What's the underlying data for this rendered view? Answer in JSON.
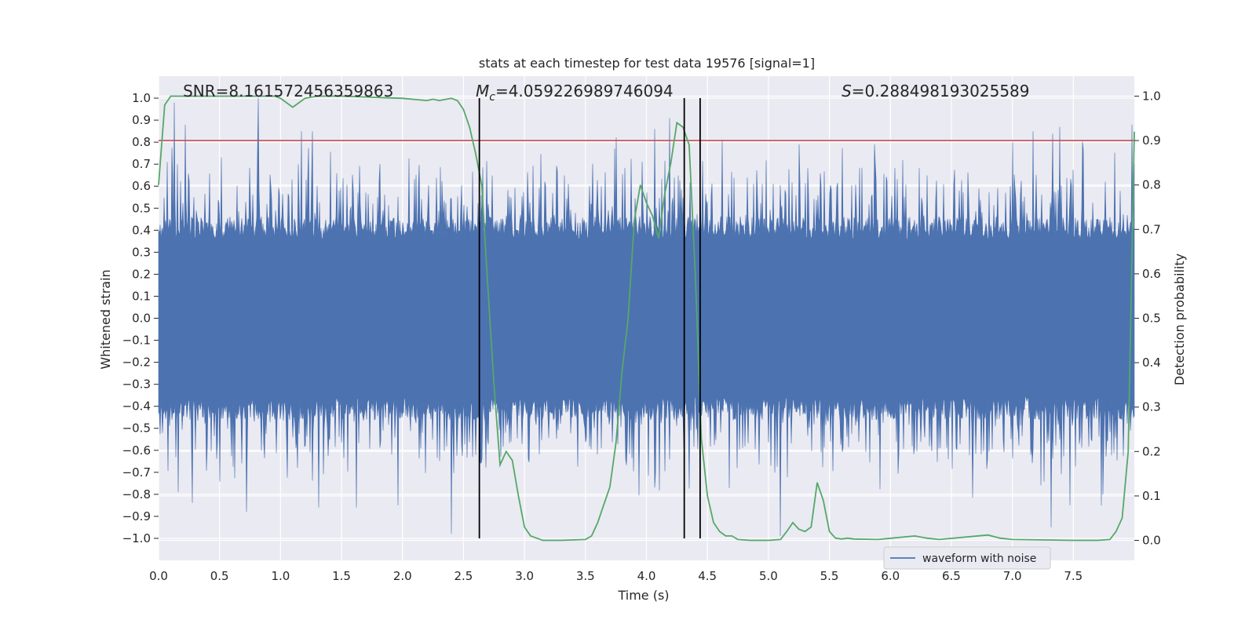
{
  "chart_data": {
    "type": "line",
    "title": "stats at each timestep for test data 19576 [signal=1]",
    "xlabel": "Time (s)",
    "ylabel": "Whitened strain",
    "y2label": "Detection probability",
    "xlim": [
      0.0,
      8.0
    ],
    "ylim": [
      -1.1,
      1.1
    ],
    "y2lim": [
      -0.045,
      1.045
    ],
    "xticks": [
      0.0,
      0.5,
      1.0,
      1.5,
      2.0,
      2.5,
      3.0,
      3.5,
      4.0,
      4.5,
      5.0,
      5.5,
      6.0,
      6.5,
      7.0,
      7.5
    ],
    "xtick_labels": [
      "0.0",
      "0.5",
      "1.0",
      "1.5",
      "2.0",
      "2.5",
      "3.0",
      "3.5",
      "4.0",
      "4.5",
      "5.0",
      "5.5",
      "6.0",
      "6.5",
      "7.0",
      "7.5"
    ],
    "yticks": [
      -1.0,
      -0.9,
      -0.8,
      -0.7,
      -0.6,
      -0.5,
      -0.4,
      -0.3,
      -0.2,
      -0.1,
      0.0,
      0.1,
      0.2,
      0.3,
      0.4,
      0.5,
      0.6,
      0.7,
      0.8,
      0.9,
      1.0
    ],
    "ytick_labels": [
      "−1.0",
      "−0.9",
      "−0.8",
      "−0.7",
      "−0.6",
      "−0.5",
      "−0.4",
      "−0.3",
      "−0.2",
      "−0.1",
      "0.0",
      "0.1",
      "0.2",
      "0.3",
      "0.4",
      "0.5",
      "0.6",
      "0.7",
      "0.8",
      "0.9",
      "1.0"
    ],
    "y2ticks": [
      0.0,
      0.1,
      0.2,
      0.3,
      0.4,
      0.5,
      0.6,
      0.7,
      0.8,
      0.9,
      1.0
    ],
    "y2tick_labels": [
      "0.0",
      "0.1",
      "0.2",
      "0.3",
      "0.4",
      "0.5",
      "0.6",
      "0.7",
      "0.8",
      "0.9",
      "1.0"
    ],
    "grid": true,
    "annotations": [
      {
        "name": "snr",
        "text": "SNR=8.161572456359863",
        "x": 0.2
      },
      {
        "name": "chirp-mass",
        "prefix": "M",
        "subscript": "c",
        "text": "=4.059226989746094",
        "x": 2.6
      },
      {
        "name": "s-statistic",
        "prefix": "S",
        "text": "=0.288498193025589",
        "x": 5.6
      }
    ],
    "threshold": {
      "y2": 0.9,
      "color": "#c44e52"
    },
    "vlines": [
      2.63,
      4.31,
      4.44
    ],
    "legend": {
      "entries": [
        "waveform with noise"
      ],
      "placement": "lower-center-right"
    },
    "waveform_series": {
      "name": "waveform with noise",
      "color": "#4c72b0",
      "typical_amplitude": 0.42,
      "sample_peaks": [
        {
          "t": 0.07,
          "v": 0.71
        },
        {
          "t": 0.13,
          "v": 0.98
        },
        {
          "t": 0.22,
          "v": 0.88
        },
        {
          "t": 0.16,
          "v": -0.79
        },
        {
          "t": 0.82,
          "v": 1.0
        },
        {
          "t": 0.72,
          "v": -0.88
        },
        {
          "t": 1.17,
          "v": 0.85
        },
        {
          "t": 1.26,
          "v": 0.85
        },
        {
          "t": 1.31,
          "v": -0.86
        },
        {
          "t": 1.62,
          "v": -0.86
        },
        {
          "t": 1.96,
          "v": -0.85
        },
        {
          "t": 2.4,
          "v": -0.98
        },
        {
          "t": 4.19,
          "v": 0.91
        },
        {
          "t": 4.07,
          "v": 0.86
        },
        {
          "t": 4.62,
          "v": 0.81
        },
        {
          "t": 5.1,
          "v": -0.99
        },
        {
          "t": 5.25,
          "v": 0.79
        },
        {
          "t": 5.87,
          "v": 0.79
        },
        {
          "t": 7.0,
          "v": 0.8
        },
        {
          "t": 7.17,
          "v": 0.85
        },
        {
          "t": 7.32,
          "v": -0.95
        },
        {
          "t": 7.39,
          "v": 0.87
        },
        {
          "t": 7.47,
          "v": -0.85
        },
        {
          "t": 7.98,
          "v": 0.88
        }
      ]
    },
    "probability_series": {
      "name": "detection probability",
      "color": "#55a868",
      "axis": "y2",
      "x": [
        0.0,
        0.05,
        0.1,
        0.15,
        0.3,
        0.6,
        0.95,
        1.0,
        1.1,
        1.15,
        1.2,
        1.3,
        1.5,
        2.0,
        2.2,
        2.25,
        2.3,
        2.4,
        2.45,
        2.5,
        2.55,
        2.6,
        2.65,
        2.7,
        2.75,
        2.8,
        2.85,
        2.9,
        2.95,
        3.0,
        3.05,
        3.1,
        3.15,
        3.2,
        3.3,
        3.5,
        3.55,
        3.6,
        3.65,
        3.7,
        3.75,
        3.8,
        3.85,
        3.9,
        3.95,
        4.0,
        4.05,
        4.1,
        4.15,
        4.2,
        4.25,
        4.3,
        4.35,
        4.4,
        4.45,
        4.5,
        4.55,
        4.6,
        4.65,
        4.7,
        4.75,
        4.85,
        5.0,
        5.1,
        5.15,
        5.2,
        5.25,
        5.3,
        5.35,
        5.4,
        5.45,
        5.5,
        5.55,
        5.6,
        5.65,
        5.7,
        5.9,
        6.2,
        6.3,
        6.4,
        6.8,
        6.9,
        7.0,
        7.5,
        7.7,
        7.8,
        7.85,
        7.9,
        7.95,
        8.0
      ],
      "y": [
        0.8,
        0.98,
        1.0,
        1.0,
        1.0,
        1.0,
        1.0,
        0.995,
        0.975,
        0.985,
        0.995,
        1.0,
        1.0,
        0.995,
        0.99,
        0.993,
        0.99,
        0.995,
        0.99,
        0.97,
        0.93,
        0.87,
        0.8,
        0.57,
        0.35,
        0.17,
        0.2,
        0.18,
        0.1,
        0.03,
        0.01,
        0.005,
        0.0,
        0.0,
        0.0,
        0.002,
        0.01,
        0.04,
        0.08,
        0.12,
        0.22,
        0.38,
        0.5,
        0.72,
        0.8,
        0.76,
        0.73,
        0.68,
        0.78,
        0.85,
        0.94,
        0.93,
        0.89,
        0.6,
        0.23,
        0.1,
        0.04,
        0.02,
        0.01,
        0.01,
        0.002,
        0.0,
        0.0,
        0.002,
        0.02,
        0.04,
        0.025,
        0.02,
        0.03,
        0.13,
        0.09,
        0.02,
        0.005,
        0.003,
        0.005,
        0.003,
        0.002,
        0.01,
        0.005,
        0.002,
        0.012,
        0.005,
        0.002,
        0.0,
        0.0,
        0.002,
        0.02,
        0.05,
        0.2,
        0.92
      ]
    }
  }
}
